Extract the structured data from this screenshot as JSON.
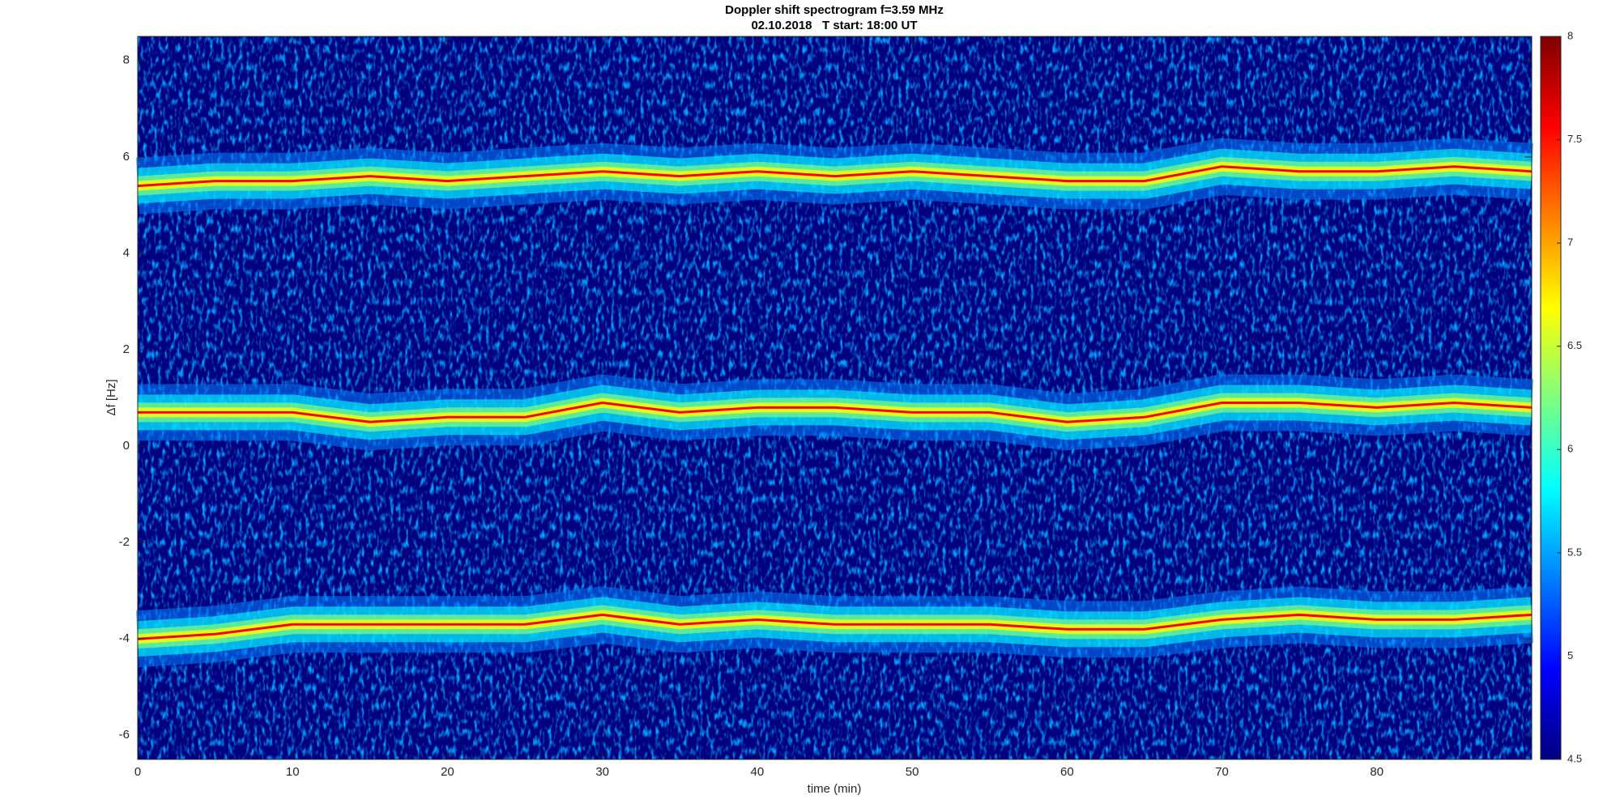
{
  "chart_data": {
    "type": "spectrogram",
    "title": "Doppler shift spectrogram f=3.59 MHz",
    "subtitle": "02.10.2018   T start: 18:00 UT",
    "x_label": "time (min)",
    "y_label": "Δf [Hz]",
    "xlim": [
      0,
      90
    ],
    "xticks": [
      0,
      10,
      20,
      30,
      40,
      50,
      60,
      70,
      80
    ],
    "ylim": [
      -6.5,
      8.5
    ],
    "yticks": [
      -6,
      -4,
      -2,
      0,
      2,
      4,
      6,
      8
    ],
    "clim": [
      4.5,
      8
    ],
    "cticks": [
      4.5,
      5,
      5.5,
      6,
      6.5,
      7,
      7.5,
      8
    ],
    "colormap": [
      "#00007f",
      "#0000ff",
      "#007fff",
      "#00ffff",
      "#7fff7f",
      "#ffff00",
      "#ff7f00",
      "#ff0000",
      "#7f0000"
    ],
    "x": [
      0,
      5,
      10,
      15,
      20,
      25,
      30,
      35,
      40,
      45,
      50,
      55,
      60,
      65,
      70,
      75,
      80,
      85,
      90
    ],
    "series": [
      {
        "color": "#ff0000",
        "values": [
          5.4,
          5.5,
          5.5,
          5.6,
          5.5,
          5.6,
          5.7,
          5.6,
          5.7,
          5.6,
          5.7,
          5.6,
          5.5,
          5.5,
          5.8,
          5.7,
          5.7,
          5.8,
          5.7
        ]
      },
      {
        "color": "#ff0000",
        "values": [
          0.7,
          0.7,
          0.7,
          0.5,
          0.6,
          0.6,
          0.9,
          0.7,
          0.8,
          0.8,
          0.7,
          0.7,
          0.5,
          0.6,
          0.9,
          0.9,
          0.8,
          0.9,
          0.8
        ]
      },
      {
        "color": "#ff0000",
        "values": [
          -4.0,
          -3.9,
          -3.7,
          -3.7,
          -3.7,
          -3.7,
          -3.5,
          -3.7,
          -3.6,
          -3.7,
          -3.7,
          -3.7,
          -3.8,
          -3.8,
          -3.6,
          -3.5,
          -3.6,
          -3.6,
          -3.5
        ]
      }
    ]
  }
}
